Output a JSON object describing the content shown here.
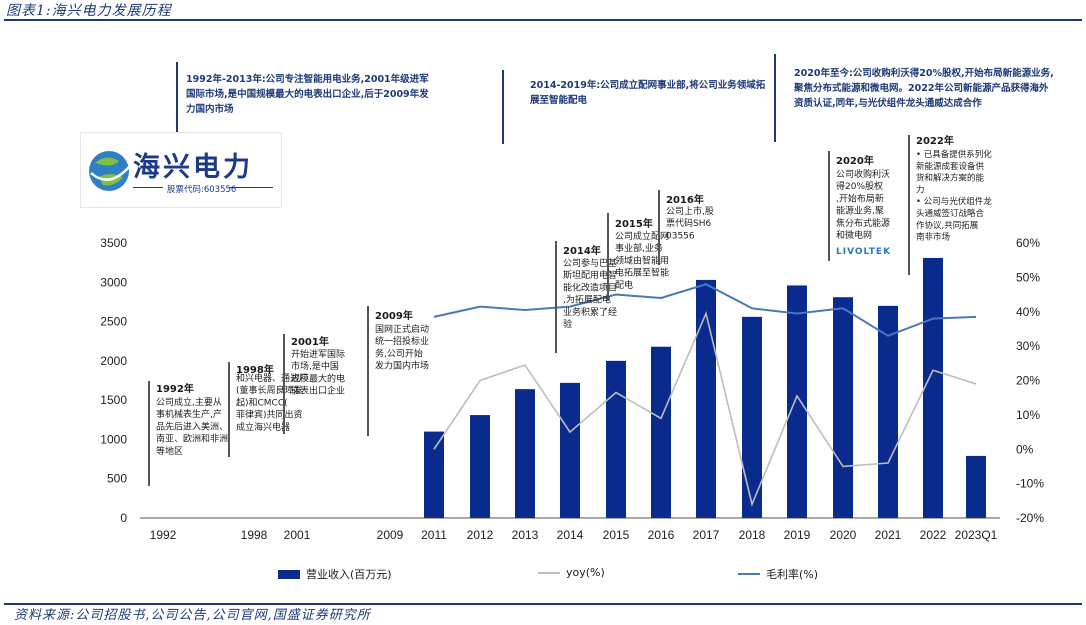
{
  "figure_title": "图表1:海兴电力发展历程",
  "source": "资料来源:公司招股书,公司公告,公司官网,国盛证券研究所",
  "logo": {
    "name": "海兴电力",
    "stock_code": "股票代码:603556"
  },
  "phases": [
    {
      "id": "p1",
      "text": "1992年-2013年:公司专注智能用电业务,2001年级进军国际市场,是中国规模最大的电表出口企业,后于2009年发力国内市场"
    },
    {
      "id": "p2",
      "text": "2014-2019年:公司成立配网事业部,将公司业务领域拓展至智能配电"
    },
    {
      "id": "p3",
      "text": "2020年至今:公司收购利沃得20%股权,开始布局新能源业务,聚焦分布式能源和微电网。2022年公司新能源产品获得海外资质认证,同年,与光伏组件龙头通威达成合作"
    }
  ],
  "milestones": [
    {
      "year": "1992年",
      "text": "公司成立,主要从事机械表生产,产品先后进入美洲、南亚、欧洲和非洲等地区"
    },
    {
      "year": "1998年",
      "text": "和兴电器、通达厂(董事长周良璋发起)和CMCC(菲律宾)共同出资成立海兴电器"
    },
    {
      "year": "2001年",
      "text": "开始进军国际市场,是中国规模最大的电能表出口企业"
    },
    {
      "year": "2009年",
      "text": "国网正式启动统一招投标业务,公司开始发力国内市场"
    },
    {
      "year": "2014年",
      "text": "公司参与巴基斯坦配用电智能化改造项目,为拓展配电业务积累了经验"
    },
    {
      "year": "2015年",
      "text": "公司成立配网事业部,业务领域由智能用电拓展至智能配电"
    },
    {
      "year": "2016年",
      "text": "公司上市,股票代码SH603556"
    },
    {
      "year": "2020年",
      "text": "公司收购利沃得20%股权,开始布局新能源业务,聚焦分布式能源和微电网",
      "logo_text": "LIVOLTEK"
    },
    {
      "year": "2022年",
      "bullets": [
        "已具备提供系列化新能源成套设备供货和解决方案的能力",
        "公司与光伏组件龙头通威签订战略合作协议,共同拓展南非市场"
      ]
    }
  ],
  "chart_data": {
    "type": "bar",
    "categories": [
      "1992",
      "1998",
      "2001",
      "2009",
      "2011",
      "2012",
      "2013",
      "2014",
      "2015",
      "2016",
      "2017",
      "2018",
      "2019",
      "2020",
      "2021",
      "2022",
      "2023Q1"
    ],
    "series": [
      {
        "name": "营业收入(百万元)",
        "type": "bar",
        "axis": "left",
        "color": "#0b2a8e",
        "values": [
          null,
          null,
          null,
          null,
          1100,
          1310,
          1640,
          1720,
          2000,
          2180,
          3030,
          2560,
          2960,
          2810,
          2700,
          3310,
          790
        ]
      },
      {
        "name": "yoy(%)",
        "type": "line",
        "axis": "right",
        "color": "#bdbdbd",
        "values": [
          null,
          null,
          null,
          null,
          0,
          20,
          24.5,
          5,
          16.5,
          9,
          39.5,
          -16,
          15.5,
          -5,
          -4,
          23,
          19
        ]
      },
      {
        "name": "毛利率(%)",
        "type": "line",
        "axis": "right",
        "color": "#4a78b8",
        "values": [
          null,
          null,
          null,
          null,
          38.5,
          41.5,
          40.5,
          41.5,
          45,
          44,
          48,
          41,
          39.5,
          41,
          33,
          38,
          38.5
        ]
      }
    ],
    "y_left": {
      "min": 0,
      "max": 3500,
      "ticks": [
        0,
        500,
        1000,
        1500,
        2000,
        2500,
        3000,
        3500
      ],
      "tick_labels": [
        "0",
        "500",
        "1000",
        "1500",
        "2000",
        "2500",
        "3000",
        "3500"
      ]
    },
    "y_right": {
      "min": -20,
      "max": 60,
      "ticks": [
        -20,
        -10,
        0,
        10,
        20,
        30,
        40,
        50,
        60
      ],
      "tick_labels": [
        "-20%",
        "-10%",
        "0%",
        "10%",
        "20%",
        "30%",
        "40%",
        "50%",
        "60%"
      ]
    },
    "grid": false,
    "legend_position": "bottom"
  }
}
